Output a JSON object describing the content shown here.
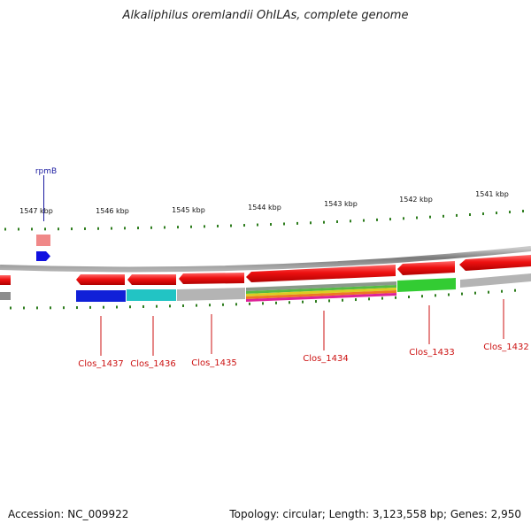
{
  "title": "Alkaliphilus oremlandii OhILAs, complete genome",
  "footer": {
    "accession": "Accession: NC_009922",
    "summary": "Topology: circular; Length: 3,123,558 bp; Genes: 2,950"
  },
  "ruler_ticks": [
    "1547 kbp",
    "1546 kbp",
    "1545 kbp",
    "1544 kbp",
    "1543 kbp",
    "1542 kbp",
    "1541 kbp"
  ],
  "genes": [
    {
      "label": "rpmB",
      "color": "#2b2bd8"
    },
    {
      "label": "Clos_1437",
      "color": "#cc1111"
    },
    {
      "label": "Clos_1436",
      "color": "#cc1111"
    },
    {
      "label": "Clos_1435",
      "color": "#cc1111"
    },
    {
      "label": "Clos_1434",
      "color": "#cc1111"
    },
    {
      "label": "Clos_1433",
      "color": "#cc1111"
    },
    {
      "label": "Clos_1432",
      "color": "#cc1111"
    }
  ],
  "colors": {
    "gene_arrow": "#ee1111",
    "backbone": "#8a8a8a",
    "tick": "#2e7d1e",
    "forward_gene": "#1010e0",
    "cog_blue": "#1020d8",
    "cog_cyan": "#22c4c4",
    "cog_grey": "#b4b4b4",
    "cog_green": "#33cc33"
  }
}
